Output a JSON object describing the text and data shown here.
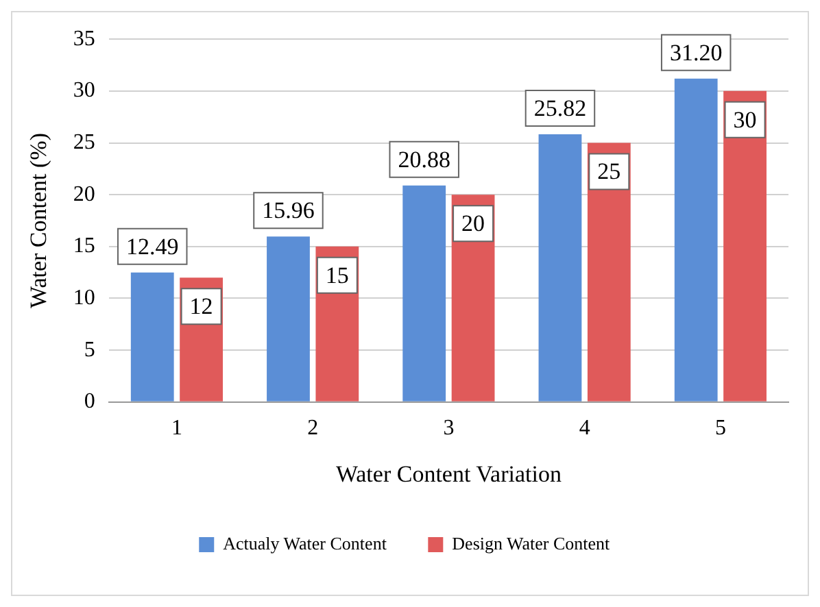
{
  "chart_data": {
    "type": "bar",
    "xlabel": "Water Content Variation",
    "ylabel": "Water Content (%)",
    "categories": [
      "1",
      "2",
      "3",
      "4",
      "5"
    ],
    "series": [
      {
        "name": "Actualy Water Content",
        "color": "#5b8ed6",
        "values": [
          12.49,
          15.96,
          20.88,
          25.82,
          31.2
        ],
        "value_labels": [
          "12.49",
          "15.96",
          "20.88",
          "25.82",
          "31.20"
        ]
      },
      {
        "name": "Design Water Content",
        "color": "#e05a5a",
        "values": [
          12,
          15,
          20,
          25,
          30
        ],
        "value_labels": [
          "12",
          "15",
          "20",
          "25",
          "30"
        ]
      }
    ],
    "ylim": [
      0,
      35
    ],
    "yticks": [
      0,
      5,
      10,
      15,
      20,
      25,
      30,
      35
    ],
    "grid": "y",
    "legend": "bottom"
  }
}
